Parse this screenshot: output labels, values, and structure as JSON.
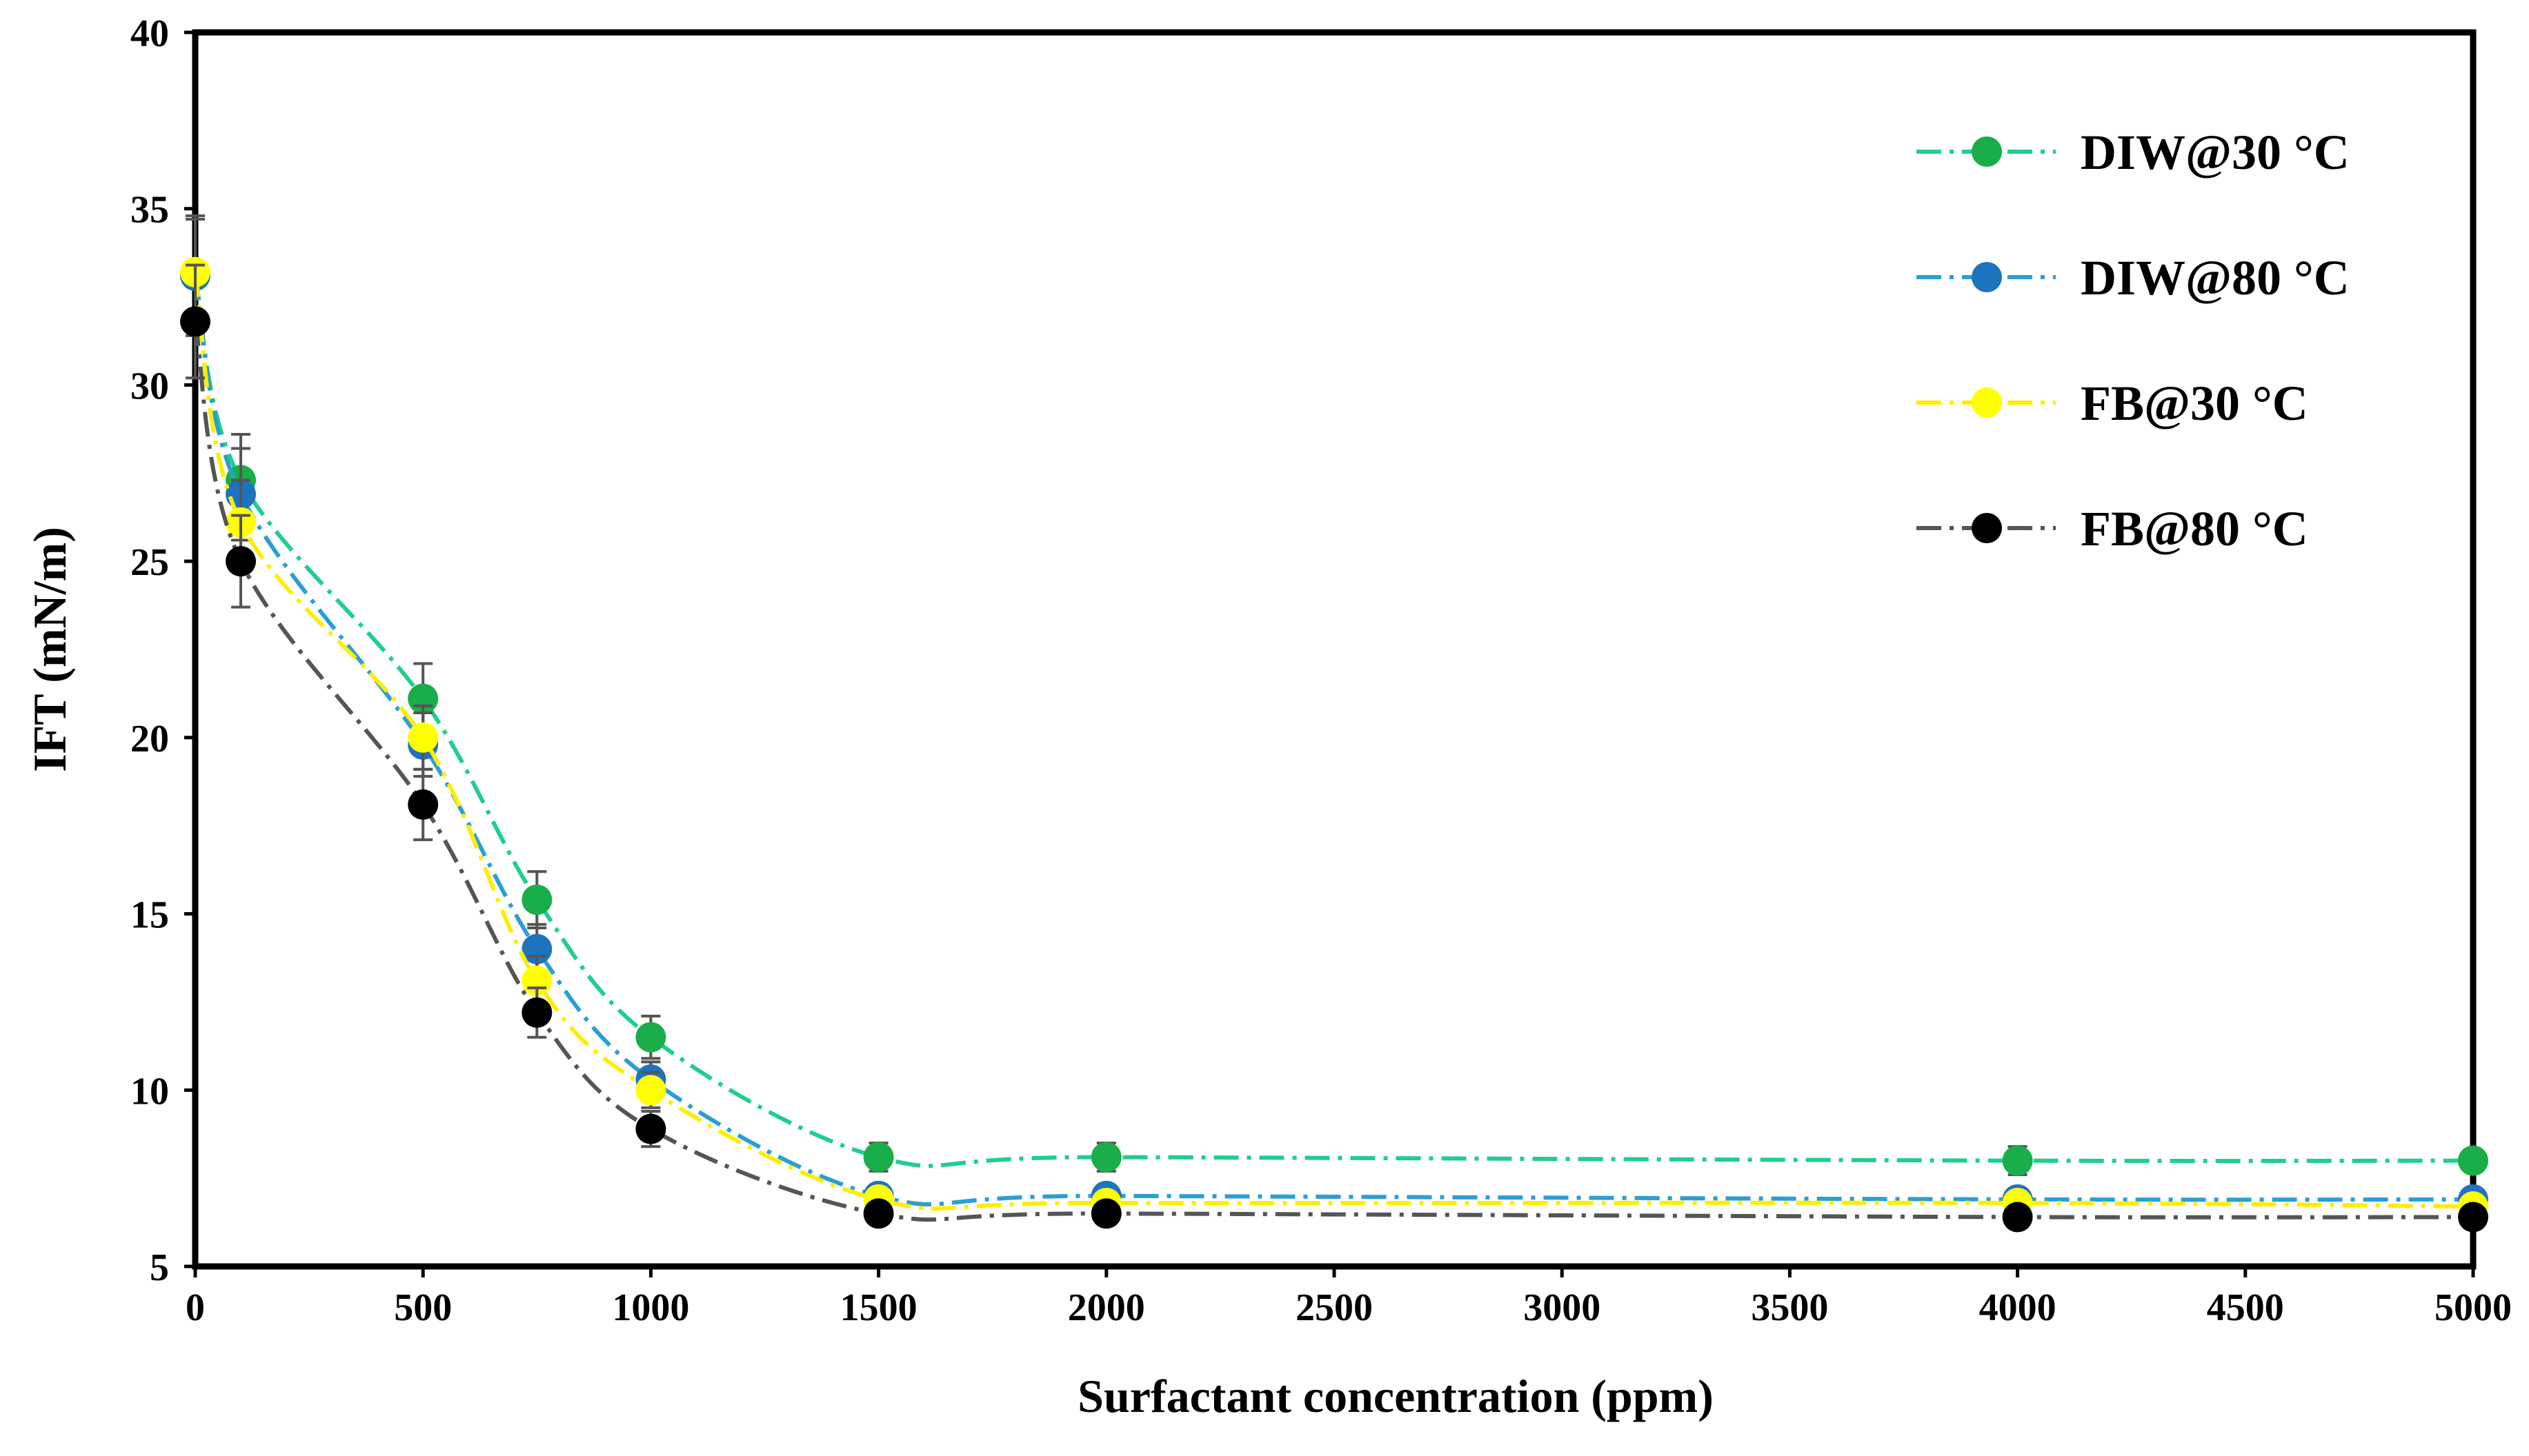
{
  "chart_data": {
    "type": "line",
    "title": "",
    "xlabel": "Surfactant concentration (ppm)",
    "ylabel": "IFT (mN/m)",
    "xlim": [
      0,
      5000
    ],
    "ylim": [
      5,
      40
    ],
    "xticks": [
      "0",
      "500",
      "1000",
      "1500",
      "2000",
      "2500",
      "3000",
      "3500",
      "4000",
      "4500",
      "5000"
    ],
    "yticks": [
      "5",
      "10",
      "15",
      "20",
      "25",
      "30",
      "35",
      "40"
    ],
    "grid": false,
    "legend_position": "top-right",
    "series": [
      {
        "name": "DIW@30 °C",
        "color": "#1aae4a",
        "line_color": "#1fcf8c",
        "x": [
          0,
          100,
          500,
          750,
          1000,
          1500,
          2000,
          4000,
          5000
        ],
        "values": [
          33.1,
          27.3,
          21.1,
          15.4,
          11.5,
          8.1,
          8.1,
          8.0,
          8.0
        ],
        "errors": [
          1.7,
          1.3,
          1.0,
          0.8,
          0.6,
          0.4,
          0.4,
          0.4,
          0.3
        ]
      },
      {
        "name": "DIW@80 °C",
        "color": "#1e73be",
        "line_color": "#2a9fd6",
        "x": [
          0,
          100,
          500,
          750,
          1000,
          1500,
          2000,
          4000,
          5000
        ],
        "values": [
          33.1,
          26.9,
          19.8,
          14.0,
          10.3,
          7.0,
          7.0,
          6.9,
          6.9
        ],
        "errors": [
          1.6,
          1.3,
          0.9,
          0.7,
          0.5,
          0.3,
          0.3,
          0.3,
          0.3
        ]
      },
      {
        "name": "FB@30 °C",
        "color": "#ffff00",
        "line_color": "#ffee00",
        "x": [
          0,
          100,
          500,
          750,
          1000,
          1500,
          2000,
          4000,
          5000
        ],
        "values": [
          33.2,
          26.1,
          20.0,
          13.1,
          10.0,
          6.9,
          6.8,
          6.8,
          6.7
        ],
        "errors": [
          1.6,
          1.2,
          0.9,
          0.7,
          0.5,
          0.3,
          0.3,
          0.3,
          0.3
        ]
      },
      {
        "name": "FB@80 °C",
        "color": "#000000",
        "line_color": "#555555",
        "x": [
          0,
          100,
          500,
          750,
          1000,
          1500,
          2000,
          4000,
          5000
        ],
        "values": [
          31.8,
          25.0,
          18.1,
          12.2,
          8.9,
          6.5,
          6.5,
          6.4,
          6.4
        ],
        "errors": [
          1.6,
          1.3,
          1.0,
          0.7,
          0.5,
          0.3,
          0.3,
          0.3,
          0.3
        ]
      }
    ]
  }
}
